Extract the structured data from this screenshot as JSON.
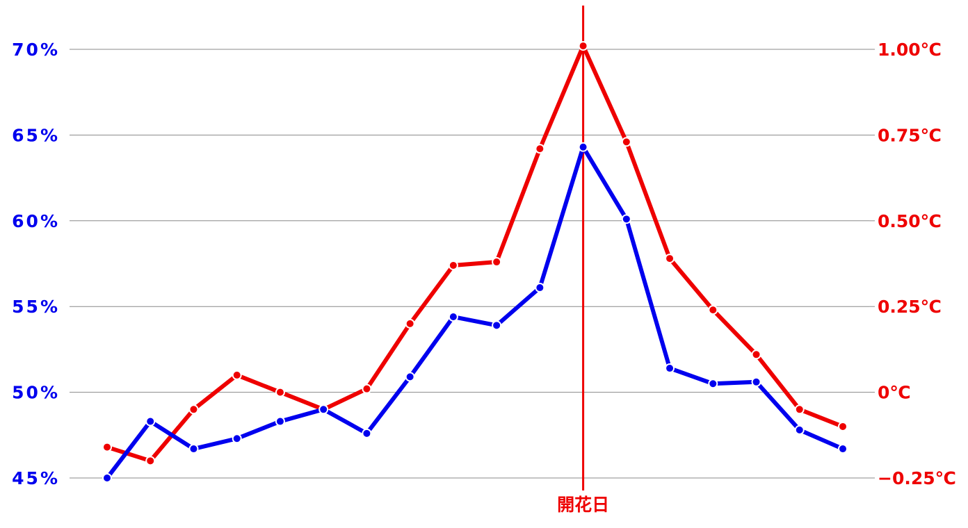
{
  "chart_data": {
    "type": "line",
    "categories": [
      null,
      null,
      null,
      null,
      null,
      null,
      null,
      null,
      null,
      null,
      null,
      "開花日",
      null,
      null,
      null,
      null,
      null,
      null
    ],
    "series": [
      {
        "color": "#0000ee",
        "values": [
          45.0,
          48.3,
          46.7,
          47.3,
          48.3,
          49.0,
          47.6,
          50.9,
          54.4,
          53.9,
          56.1,
          64.3,
          60.1,
          51.4,
          50.5,
          50.6,
          47.8,
          46.7
        ]
      },
      {
        "color": "#ee0000",
        "axis": "y2",
        "values": [
          -0.16,
          -0.2,
          -0.05,
          0.05,
          0.0,
          -0.05,
          0.01,
          0.2,
          0.37,
          0.38,
          0.71,
          1.01,
          0.73,
          0.39,
          0.24,
          0.11,
          -0.05,
          -0.1
        ]
      }
    ],
    "ylim": [
      45,
      70
    ],
    "yticks": [
      {
        "value": 45,
        "label": "45%"
      },
      {
        "value": 50,
        "label": "50%"
      },
      {
        "value": 55,
        "label": "55%"
      },
      {
        "value": 60,
        "label": "60%"
      },
      {
        "value": 65,
        "label": "65%"
      },
      {
        "value": 70,
        "label": "70%"
      }
    ],
    "y2lim": [
      -0.25,
      1.0
    ],
    "y2ticks": [
      {
        "value": -0.25,
        "label": "−0.25℃"
      },
      {
        "value": 0,
        "label": "0℃"
      },
      {
        "value": 0.25,
        "label": "0.25℃"
      },
      {
        "value": 0.5,
        "label": "0.50℃"
      },
      {
        "value": 0.75,
        "label": "0.75℃"
      },
      {
        "value": 1.0,
        "label": "1.00℃"
      }
    ],
    "grid": true
  }
}
